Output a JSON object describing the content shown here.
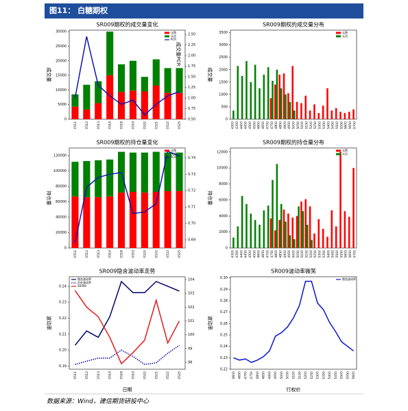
{
  "header": "图11：  白糖期权",
  "footer": "数据来源：Wind，建信期货研投中心",
  "chart_data": [
    {
      "type": "combo",
      "title": "SR009期权的成交量变化",
      "ylabel": "成交量",
      "y2label": "成交量PCR",
      "legend": "upper right",
      "categories": [
        "0511",
        "0512",
        "0513",
        "0514",
        "0518",
        "0519",
        "0520",
        "0521",
        "0522",
        "0525"
      ],
      "ylim": [
        0,
        30500
      ],
      "yticks": [
        0,
        5000,
        10000,
        15000,
        20000,
        25000,
        30000
      ],
      "y2lim": [
        0.5,
        2.6
      ],
      "y2ticks": [
        {
          "value": 0.5,
          "label": "0.50"
        },
        {
          "value": 0.75,
          "label": "0.75"
        },
        {
          "value": 1.0,
          "label": "1.00"
        },
        {
          "value": 1.25,
          "label": "1.25"
        },
        {
          "value": 1.5,
          "label": "1.50"
        },
        {
          "value": 1.75,
          "label": "1.75"
        },
        {
          "value": 2.0,
          "label": "2.00"
        },
        {
          "value": 2.25,
          "label": "2.25"
        },
        {
          "value": 2.5,
          "label": "2.50"
        }
      ],
      "series": [
        {
          "name": "认购",
          "color": "#ff0000",
          "values": [
            4300,
            3300,
            5500,
            15000,
            9300,
            9800,
            9500,
            11500,
            9000,
            9000
          ]
        },
        {
          "name": "认沽",
          "color": "#008000",
          "values": [
            4200,
            8500,
            7500,
            15000,
            9500,
            10200,
            5000,
            9000,
            8500,
            8500
          ]
        },
        {
          "name": "PCR",
          "color": "#0a14b4",
          "axis": "y2",
          "values": [
            1.0,
            2.45,
            1.3,
            1.05,
            0.85,
            0.95,
            0.6,
            0.85,
            1.05,
            1.15
          ]
        }
      ]
    },
    {
      "type": "bar",
      "title": "SR009期权的成交量分布",
      "ylabel": "成交量",
      "legend": "upper right",
      "categories": [
        "4300",
        "4350",
        "4400",
        "4450",
        "4500",
        "4550",
        "4600",
        "4650",
        "4700",
        "4750",
        "4800",
        "4850",
        "4900",
        "4950",
        "5000",
        "5050",
        "5100",
        "5150",
        "5200",
        "5250",
        "5300",
        "5350",
        "5400",
        "5450",
        "5500",
        "5550",
        "5600",
        "5650",
        "5700"
      ],
      "ylim": [
        0,
        3600
      ],
      "yticks": [
        0,
        500,
        1000,
        1500,
        2000,
        2500,
        3000,
        3500
      ],
      "series": [
        {
          "name": "认购",
          "color": "#ff0000",
          "values": [
            0,
            0,
            0,
            0,
            0,
            0,
            0,
            0,
            0,
            850,
            1400,
            1800,
            1850,
            1050,
            2150,
            700,
            650,
            950,
            350,
            600,
            250,
            550,
            1250,
            350,
            450,
            300,
            250,
            300,
            400
          ]
        },
        {
          "name": "认沽",
          "color": "#008000",
          "values": [
            350,
            2150,
            1750,
            2350,
            1500,
            2200,
            1250,
            1800,
            2100,
            1550,
            2000,
            1250,
            1000,
            700,
            350,
            0,
            0,
            0,
            0,
            0,
            0,
            0,
            0,
            0,
            0,
            0,
            0,
            0,
            0
          ]
        }
      ]
    },
    {
      "type": "combo",
      "title": "SR009期权的持仓量变化",
      "ylabel": "持仓量",
      "y2label": "持仓量PCR",
      "legend": "upper right",
      "categories": [
        "0511",
        "0512",
        "0513",
        "0514",
        "0518",
        "0519",
        "0520",
        "0521",
        "0522",
        "0525"
      ],
      "ylim": [
        0,
        130000
      ],
      "yticks": [
        0,
        20000,
        40000,
        60000,
        80000,
        100000,
        120000
      ],
      "y2lim": [
        0.685,
        0.746
      ],
      "y2ticks": [
        0.69,
        {
          "value": 0.7,
          "label": "0.70"
        },
        0.71,
        0.72,
        0.73,
        0.74
      ],
      "series": [
        {
          "name": "认购",
          "color": "#ff0000",
          "values": [
            67000,
            66000,
            66000,
            67000,
            72000,
            73000,
            72000,
            73000,
            74000,
            74000
          ]
        },
        {
          "name": "认沽",
          "color": "#008000",
          "values": [
            45000,
            47000,
            48000,
            48000,
            53000,
            51000,
            52000,
            52000,
            50000,
            50000
          ]
        },
        {
          "name": "PCR",
          "color": "#0a14b4",
          "axis": "y2",
          "values": [
            0.688,
            0.722,
            0.728,
            0.73,
            0.731,
            0.706,
            0.707,
            0.712,
            0.744,
            0.741
          ]
        }
      ]
    },
    {
      "type": "bar",
      "title": "SR009期权的持仓量分布",
      "ylabel": "持仓量",
      "legend": "upper right",
      "categories": [
        "4300",
        "4350",
        "4400",
        "4450",
        "4500",
        "4550",
        "4600",
        "4650",
        "4700",
        "4750",
        "4800",
        "4850",
        "4900",
        "4950",
        "5000",
        "5050",
        "5100",
        "5150",
        "5200",
        "5250",
        "5300",
        "5350",
        "5400",
        "5450",
        "5500",
        "5550",
        "5600",
        "5650",
        "5700"
      ],
      "ylim": [
        0,
        12500
      ],
      "yticks": [
        0,
        2000,
        4000,
        6000,
        8000,
        10000,
        12000
      ],
      "series": [
        {
          "name": "认购",
          "color": "#ff0000",
          "values": [
            0,
            0,
            0,
            0,
            0,
            0,
            0,
            0,
            0,
            3700,
            2200,
            3500,
            4800,
            4300,
            3800,
            4000,
            5800,
            6100,
            5200,
            1800,
            3600,
            2400,
            1400,
            4700,
            2700,
            12000,
            4600,
            3900,
            10000
          ]
        },
        {
          "name": "认沽",
          "color": "#008000",
          "values": [
            1300,
            2700,
            6500,
            5500,
            4300,
            3500,
            2900,
            4700,
            5300,
            8500,
            10500,
            5500,
            3300,
            1600,
            1100,
            5200,
            4600,
            2900,
            1000,
            0,
            0,
            0,
            0,
            0,
            0,
            0,
            0,
            0,
            0
          ]
        }
      ]
    },
    {
      "type": "line",
      "title": "SR009隐含波动率走势",
      "ylabel": "波动率",
      "xlabel": "日期",
      "legend": "upper left",
      "categories": [
        "0511",
        "0512",
        "0513",
        "0514",
        "0518",
        "0519",
        "0520",
        "0521",
        "0522",
        "0525"
      ],
      "ylim": [
        0.188,
        0.246
      ],
      "yticks": [
        0.19,
        {
          "value": 0.2,
          "label": "0.20"
        },
        0.21,
        0.22,
        0.23,
        0.24
      ],
      "y2lim": [
        97.5,
        104.2
      ],
      "y2ticks": [
        98,
        99,
        100,
        101,
        102,
        103,
        104
      ],
      "series": [
        {
          "name": "隐含波动率",
          "color": "#000066",
          "values": [
            0.203,
            0.212,
            0.208,
            0.221,
            0.243,
            0.236,
            0.236,
            0.243,
            0.24,
            0.237
          ]
        },
        {
          "name": "历史波动率",
          "color": "#000099",
          "dash": true,
          "values": [
            0.191,
            0.193,
            0.195,
            0.195,
            0.2,
            0.196,
            0.191,
            0.192,
            0.198,
            0.203
          ]
        },
        {
          "name": "SR009",
          "color": "#e31a1c",
          "axis": "y2",
          "values": [
            103.2,
            102.0,
            101.3,
            99.8,
            97.9,
            98.7,
            99.6,
            102.5,
            99.4,
            101.0
          ]
        }
      ]
    },
    {
      "type": "line",
      "title": "SR009波动率微笑",
      "ylabel": "波动率",
      "xlabel": "行权价",
      "legend": "upper right",
      "categories": [
        "4600",
        "4650",
        "4700",
        "4750",
        "4800",
        "4850",
        "4900",
        "4950",
        "5000",
        "5050",
        "5100",
        "5150",
        "5200",
        "5250",
        "5300",
        "5350",
        "5400",
        "5450",
        "5500",
        "5550",
        "5600"
      ],
      "ylim": [
        0.22,
        0.301
      ],
      "yticks": [
        0.22,
        0.23,
        0.24,
        0.25,
        0.26,
        0.27,
        0.28,
        0.29,
        {
          "value": 0.3,
          "label": "0.30"
        }
      ],
      "series": [
        {
          "name": "隐含波动率",
          "color": "#0a14d0",
          "values": [
            0.23,
            0.228,
            0.229,
            0.226,
            0.228,
            0.231,
            0.236,
            0.249,
            0.252,
            0.257,
            0.265,
            0.276,
            0.297,
            0.297,
            0.278,
            0.272,
            0.261,
            0.253,
            0.244,
            0.24,
            0.236
          ]
        }
      ]
    }
  ]
}
